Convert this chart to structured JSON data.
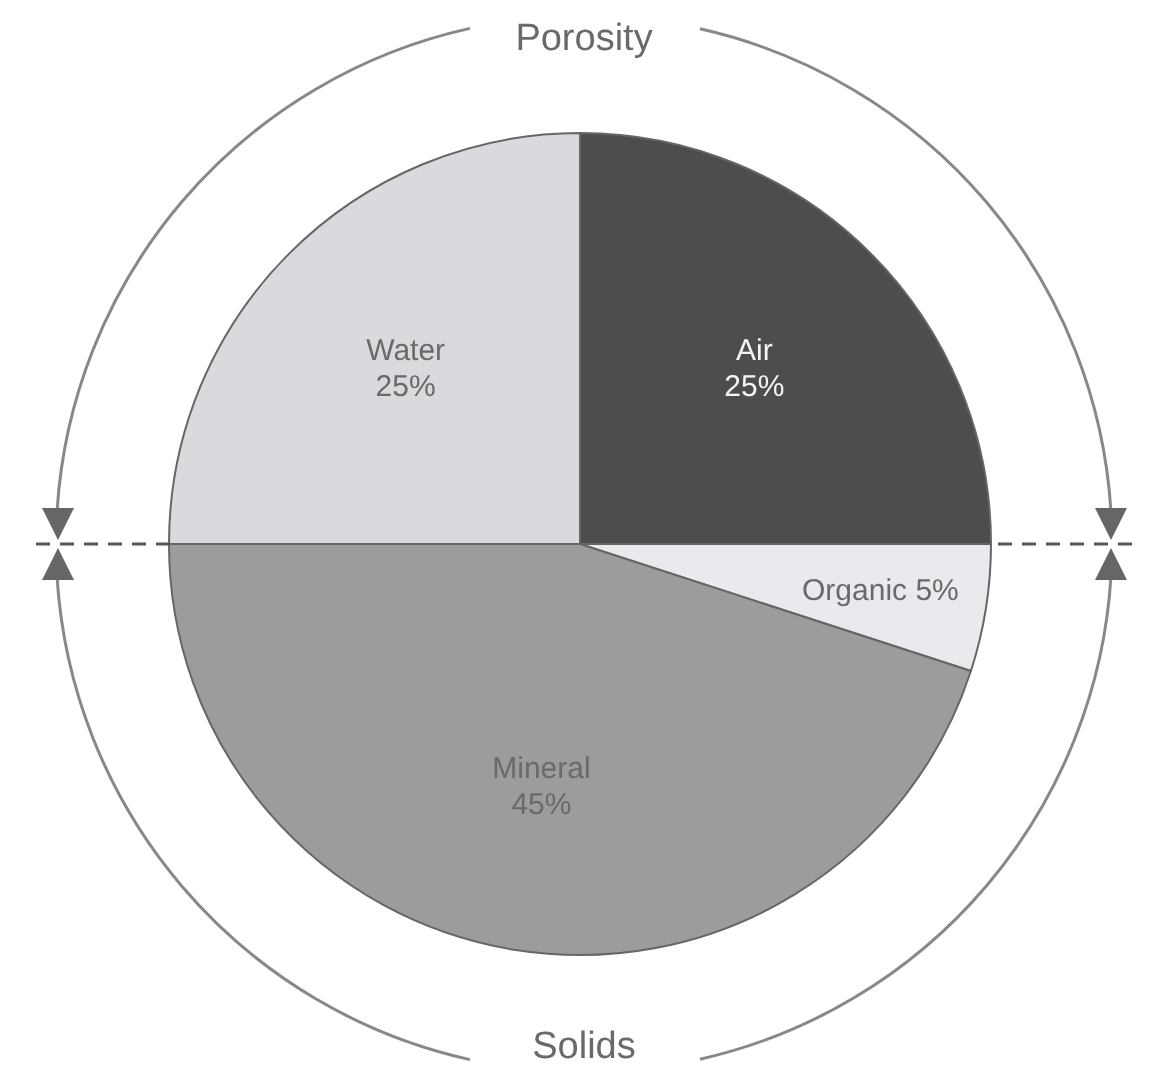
{
  "chart_data": {
    "type": "pie",
    "categories": [
      "Air",
      "Organic",
      "Mineral",
      "Water"
    ],
    "values": [
      25,
      5,
      45,
      25
    ],
    "value_labels": [
      "25%",
      "5%",
      "45%",
      "25%"
    ],
    "colors": [
      "#4d4d4f",
      "#e9e9ee",
      "#9c9c9e",
      "#dadade"
    ],
    "annotations": [
      "Porosity",
      "Solids"
    ],
    "legend": false
  }
}
